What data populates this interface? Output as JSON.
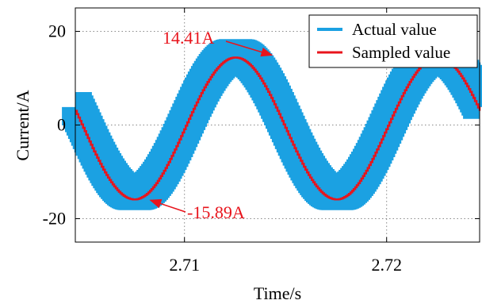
{
  "chart_data": {
    "type": "line",
    "title": "",
    "xlabel": "Time/s",
    "ylabel": "Current/A",
    "xlim": [
      2.7046,
      2.7246
    ],
    "ylim": [
      -25,
      25
    ],
    "x_ticks": [
      2.71,
      2.72
    ],
    "x_tick_labels": [
      "2.71",
      "2.72"
    ],
    "y_ticks": [
      20,
      0,
      -20
    ],
    "y_tick_labels": [
      "20",
      "0",
      "-20"
    ],
    "grid": true,
    "legend_position": "top-right",
    "colors": {
      "actual": "#1ba1e2",
      "sampled": "#e8141c",
      "annotation": "#e8141c",
      "grid": "#888888"
    },
    "series": [
      {
        "name": "Actual value",
        "frequency_hz": 100,
        "peak_max": 14.8,
        "peak_min": -15.3,
        "band_width": 2.0,
        "offset_s": 0.0004,
        "x_start": 2.7046,
        "x_end": 2.7246
      },
      {
        "name": "Sampled value",
        "frequency_hz": 100,
        "peak_max": 14.41,
        "peak_min": -15.89,
        "offset_s": 0.0004,
        "x_start": 2.7046,
        "x_end": 2.7246
      }
    ],
    "annotations": [
      {
        "label": "14.41A",
        "x": 2.7144,
        "y": 14.41
      },
      {
        "label": "-15.89A",
        "x": 2.7082,
        "y": -15.89
      }
    ]
  }
}
